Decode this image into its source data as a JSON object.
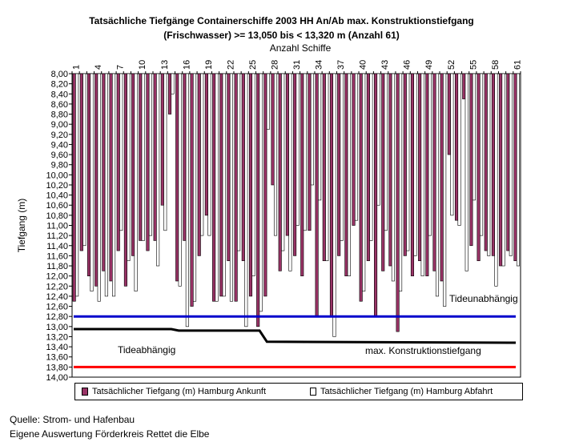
{
  "title_line1": "Tatsächliche Tiefgänge Containerschiffe 2003 HH An/Ab max. Konstruktionstiefgang",
  "title_line2": "(Frischwasser) >= 13,050 bis < 13,320 m (Anzahl 61)",
  "x_axis_label": "Anzahl Schiffe",
  "y_axis_label": "Tiefgang (m)",
  "legend": {
    "arrival_label": "Tatsächlicher Tiefgang (m) Hamburg Ankunft",
    "departure_label": "Tatsächlicher Tiefgang (m) Hamburg Abfahrt"
  },
  "footer": {
    "source": "Quelle: Strom- und Hafenbau",
    "evaluation": "Eigene Auswertung Förderkreis Rettet die Elbe"
  },
  "colors": {
    "arrival": "#993366",
    "departure": "#ffffff",
    "tide_independent": "#0000cc",
    "tide_dependent": "#ff0000",
    "max_draft": "#000000"
  },
  "chart_data": {
    "type": "bar",
    "orientation": "vertical-reversed-y",
    "xlabel": "Anzahl Schiffe",
    "ylabel": "Tiefgang (m)",
    "ylim": [
      8.0,
      14.0
    ],
    "y_ticks": [
      "8,00",
      "8,20",
      "8,40",
      "8,60",
      "8,80",
      "9,00",
      "9,20",
      "9,40",
      "9,60",
      "9,80",
      "10,00",
      "10,20",
      "10,40",
      "10,60",
      "10,80",
      "11,00",
      "11,20",
      "11,40",
      "11,60",
      "11,80",
      "12,00",
      "12,20",
      "12,40",
      "12,60",
      "12,80",
      "13,00",
      "13,20",
      "13,40",
      "13,60",
      "13,80",
      "14,00"
    ],
    "x_tick_labels": [
      "1",
      "4",
      "7",
      "10",
      "13",
      "16",
      "19",
      "22",
      "25",
      "28",
      "31",
      "34",
      "37",
      "40",
      "43",
      "46",
      "49",
      "52",
      "55",
      "58",
      "61"
    ],
    "categories": [
      "1",
      "2",
      "3",
      "4",
      "5",
      "6",
      "7",
      "8",
      "9",
      "10",
      "11",
      "12",
      "13",
      "14",
      "15",
      "16",
      "17",
      "18",
      "19",
      "20",
      "21",
      "22",
      "23",
      "24",
      "25",
      "26",
      "27",
      "28",
      "29",
      "30",
      "31",
      "32",
      "33",
      "34",
      "35",
      "36",
      "37",
      "38",
      "39",
      "40",
      "41",
      "42",
      "43",
      "44",
      "45",
      "46",
      "47",
      "48",
      "49",
      "50",
      "51",
      "52",
      "53",
      "54",
      "55",
      "56",
      "57",
      "58",
      "59",
      "60",
      "61"
    ],
    "series": [
      {
        "name": "Tatsächlicher Tiefgang (m) Hamburg Ankunft",
        "values": [
          12.5,
          11.5,
          12.0,
          12.2,
          11.9,
          12.1,
          11.5,
          12.2,
          11.6,
          11.3,
          11.5,
          11.3,
          10.6,
          8.8,
          12.1,
          11.3,
          12.6,
          11.6,
          10.8,
          12.5,
          12.4,
          11.7,
          12.5,
          11.7,
          12.4,
          13.0,
          12.4,
          10.2,
          11.9,
          11.2,
          11.6,
          12.0,
          11.1,
          12.8,
          11.7,
          12.8,
          11.6,
          12.0,
          11.0,
          12.5,
          11.7,
          12.8,
          11.9,
          11.8,
          13.1,
          11.6,
          12.0,
          11.7,
          12.0,
          11.9,
          12.1,
          9.6,
          10.9,
          8.5,
          11.4,
          11.7,
          11.5,
          11.6,
          11.8,
          11.5,
          11.7
        ],
        "color": "#993366"
      },
      {
        "name": "Tatsächlicher Tiefgang (m) Hamburg Abfahrt",
        "values": [
          12.4,
          11.4,
          12.3,
          12.5,
          12.4,
          12.4,
          11.1,
          11.7,
          12.3,
          11.3,
          11.2,
          11.8,
          11.1,
          8.4,
          12.2,
          13.0,
          12.5,
          11.2,
          11.2,
          12.5,
          12.4,
          12.5,
          11.5,
          13.0,
          12.0,
          12.7,
          9.1,
          11.2,
          11.5,
          11.9,
          11.0,
          11.1,
          10.2,
          10.5,
          11.7,
          13.2,
          11.3,
          12.0,
          10.9,
          12.3,
          11.3,
          10.6,
          11.1,
          12.1,
          12.3,
          11.5,
          11.6,
          12.0,
          11.2,
          12.4,
          12.6,
          10.8,
          11.0,
          11.9,
          10.5,
          11.2,
          11.6,
          12.2,
          11.8,
          11.6,
          11.8
        ],
        "color": "#ffffff"
      }
    ],
    "reference_lines": [
      {
        "name": "Tideunabhängig",
        "value": 12.8,
        "color": "#0000cc"
      },
      {
        "name": "Tideabhängig",
        "value": 13.8,
        "color": "#ff0000"
      },
      {
        "name": "max. Konstruktionstiefgang",
        "steps": [
          [
            1,
            13.05
          ],
          [
            14,
            13.05
          ],
          [
            15,
            13.08
          ],
          [
            26,
            13.08
          ],
          [
            27,
            13.3
          ],
          [
            61,
            13.32
          ]
        ],
        "color": "#000000"
      }
    ]
  }
}
